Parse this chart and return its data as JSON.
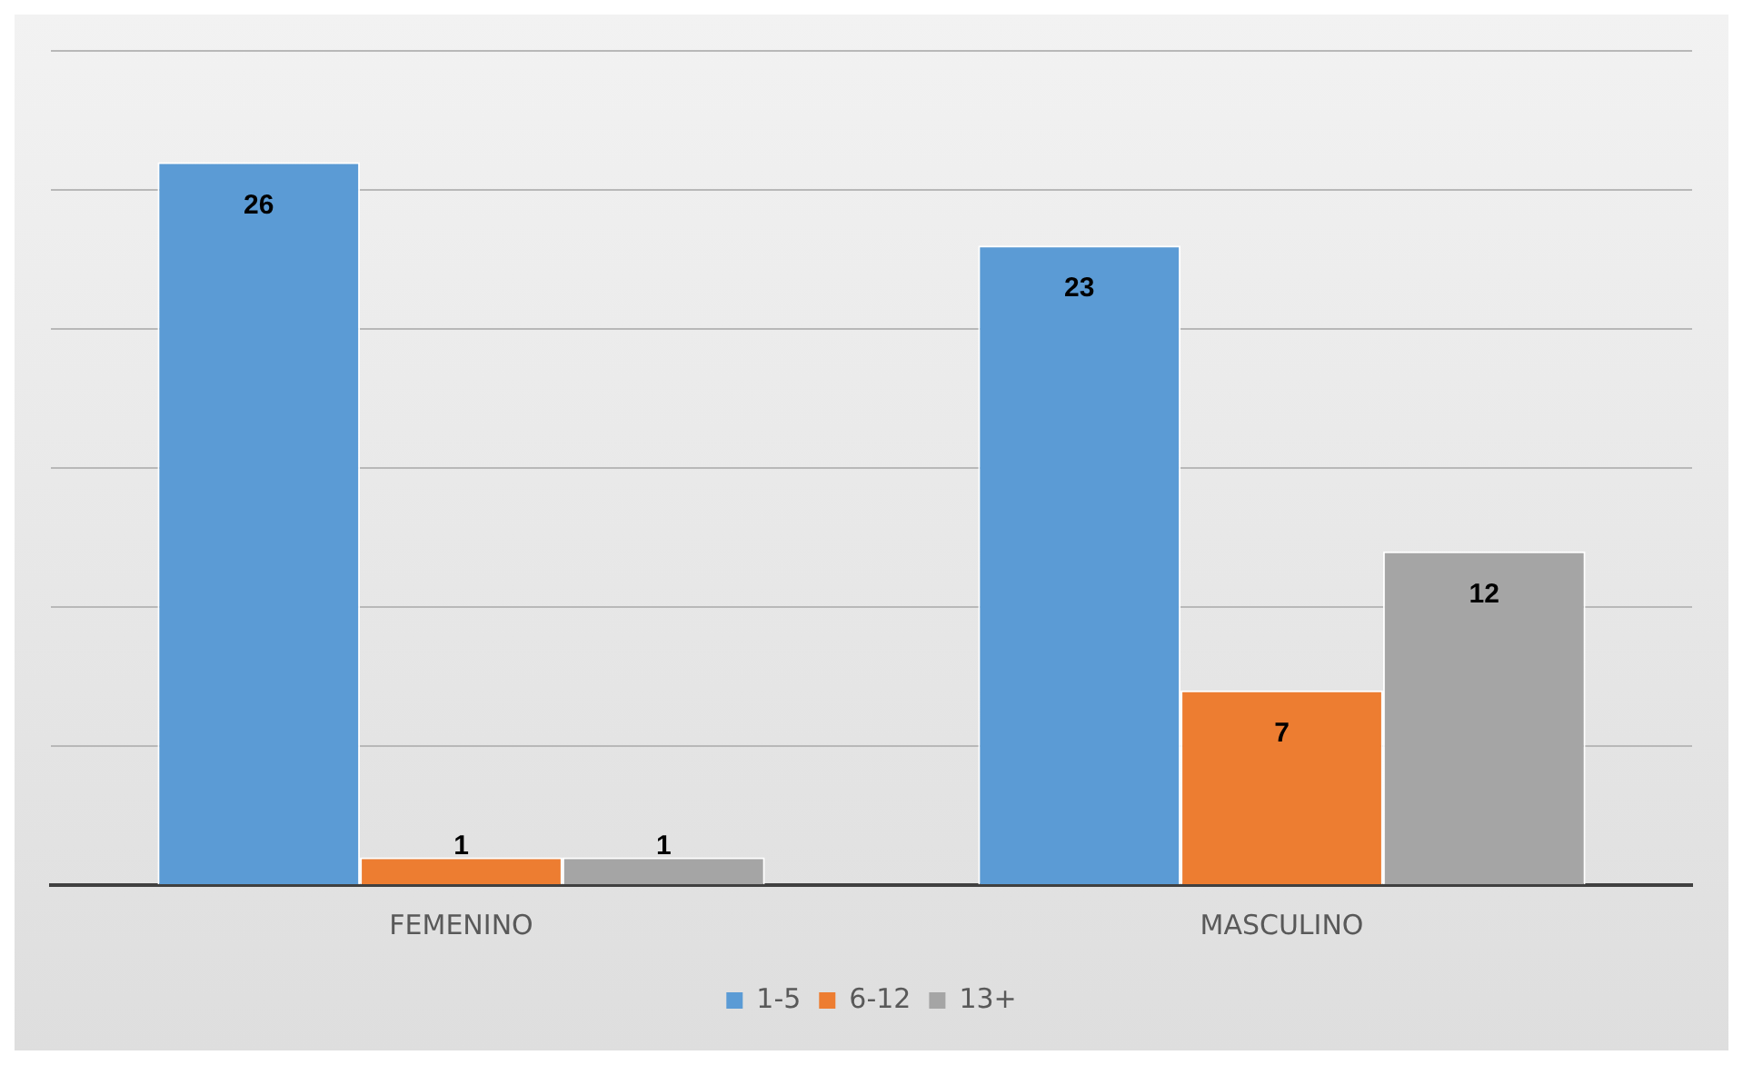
{
  "chart_data": {
    "type": "bar",
    "categories": [
      "FEMENINO",
      "MASCULINO"
    ],
    "series": [
      {
        "name": "1-5",
        "color": "#5b9bd5",
        "values": [
          26,
          23
        ]
      },
      {
        "name": "6-12",
        "color": "#ed7d31",
        "values": [
          1,
          7
        ]
      },
      {
        "name": "13+",
        "color": "#a5a5a5",
        "values": [
          1,
          12
        ]
      }
    ],
    "ylim": [
      0,
      30
    ],
    "yticks": [
      {
        "value": 0,
        "label": null
      },
      {
        "value": 5,
        "label": null
      },
      {
        "value": 10,
        "label": null
      },
      {
        "value": 15,
        "label": null
      },
      {
        "value": 20,
        "label": null
      },
      {
        "value": 25,
        "label": null
      },
      {
        "value": 30,
        "label": null
      }
    ],
    "grid": "y",
    "tick_labels": "x",
    "data_labels": true,
    "legend": "bottom"
  }
}
